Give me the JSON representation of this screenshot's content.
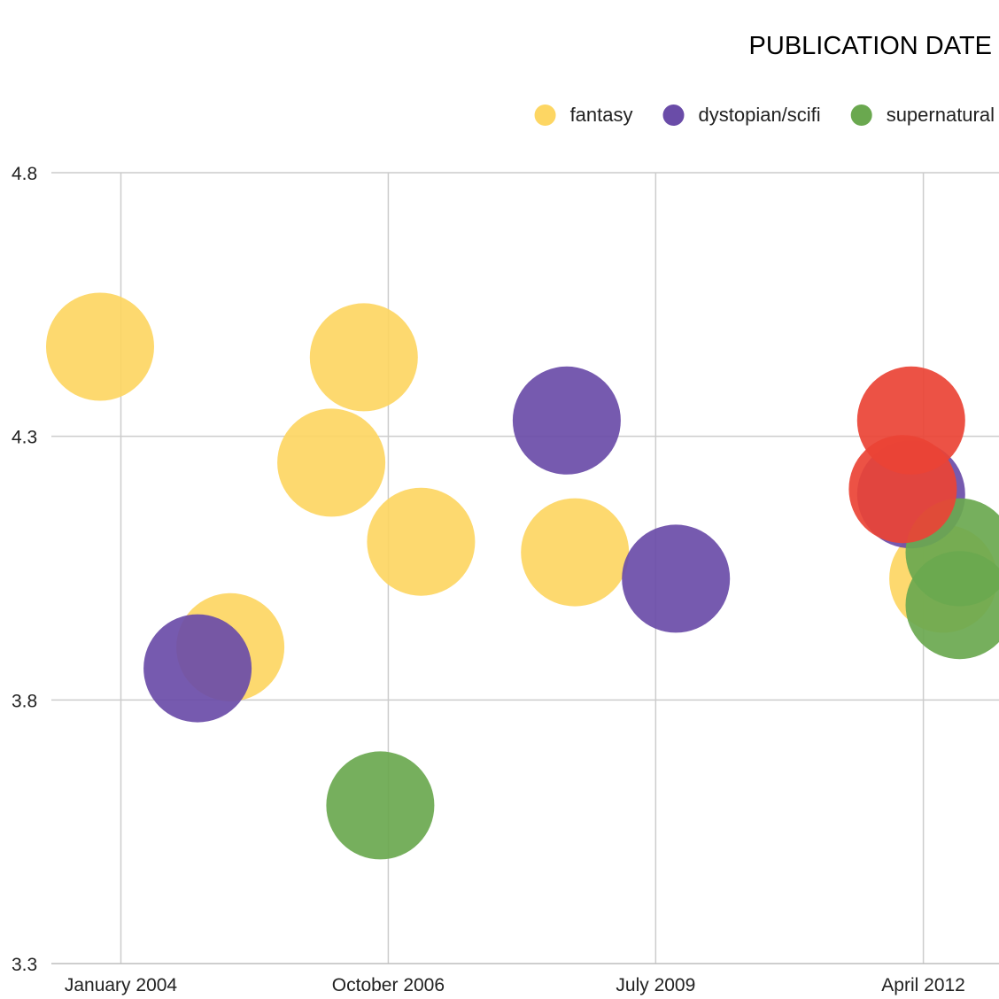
{
  "chart_data": {
    "type": "scatter",
    "title": "PUBLICATION DATE",
    "xlabel": "",
    "ylabel": "",
    "x_scale": "date",
    "xlim": [
      "2003-04-15",
      "2013-01-10"
    ],
    "ylim": [
      3.3,
      4.8
    ],
    "x_ticks": [
      {
        "value": "2004-01-01",
        "label": "January 2004"
      },
      {
        "value": "2006-10-01",
        "label": "October 2006"
      },
      {
        "value": "2009-07-01",
        "label": "July 2009"
      },
      {
        "value": "2012-04-01",
        "label": "April 2012"
      }
    ],
    "y_ticks": [
      {
        "value": 3.3,
        "label": "3.3"
      },
      {
        "value": 3.8,
        "label": "3.8"
      },
      {
        "value": 4.3,
        "label": "4.3"
      },
      {
        "value": 4.8,
        "label": "4.8"
      }
    ],
    "grid": true,
    "legend_position": "top-right",
    "series": [
      {
        "name": "fantasy",
        "color": "#FDD663",
        "points": [
          {
            "x": "2003-10-15",
            "y": 4.47
          },
          {
            "x": "2005-02-15",
            "y": 3.9
          },
          {
            "x": "2006-03-01",
            "y": 4.25
          },
          {
            "x": "2006-07-01",
            "y": 4.45
          },
          {
            "x": "2007-02-01",
            "y": 4.1
          },
          {
            "x": "2008-09-01",
            "y": 4.08
          },
          {
            "x": "2012-06-15",
            "y": 4.03
          }
        ]
      },
      {
        "name": "dystopian/scifi",
        "color": "#6A4CA8",
        "points": [
          {
            "x": "2004-10-15",
            "y": 3.86
          },
          {
            "x": "2008-08-01",
            "y": 4.33
          },
          {
            "x": "2009-09-15",
            "y": 4.03
          },
          {
            "x": "2012-02-15",
            "y": 4.19
          }
        ]
      },
      {
        "name": "supernatural",
        "color": "#6AA84F",
        "points": [
          {
            "x": "2006-09-01",
            "y": 3.6
          },
          {
            "x": "2012-08-15",
            "y": 4.08
          },
          {
            "x": "2012-08-15",
            "y": 3.98
          }
        ]
      },
      {
        "color": "#EA4335",
        "points": [
          {
            "x": "2012-01-15",
            "y": 4.2
          },
          {
            "x": "2012-02-15",
            "y": 4.33
          }
        ]
      }
    ]
  }
}
